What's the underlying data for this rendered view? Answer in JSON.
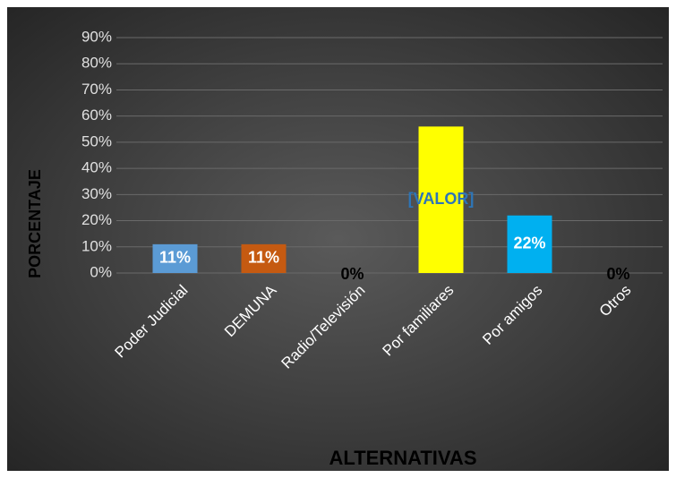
{
  "chart_data": {
    "type": "bar",
    "categories": [
      "Poder Judicial",
      "DEMUNA",
      "Radio/Televisión",
      "Por familiares",
      "Por amigos",
      "Otros"
    ],
    "values": [
      11,
      11,
      0,
      56,
      22,
      0
    ],
    "value_labels": [
      "11%",
      "11%",
      "0%",
      "[VALOR]",
      "22%",
      "0%"
    ],
    "colors": [
      "#5b9bd5",
      "#c55a11",
      "#a5a5a5",
      "#ffff00",
      "#00b0f0",
      "#4472c4"
    ],
    "value_label_colors": [
      "#ffffff",
      "#ffffff",
      "#000000",
      "#2e75b6",
      "#ffffff",
      "#000000"
    ],
    "ylim": [
      0,
      90
    ],
    "yticks": [
      {
        "value": 0,
        "label": "0%"
      },
      {
        "value": 10,
        "label": "10%"
      },
      {
        "value": 20,
        "label": "20%"
      },
      {
        "value": 30,
        "label": "30%"
      },
      {
        "value": 40,
        "label": "40%"
      },
      {
        "value": 50,
        "label": "50%"
      },
      {
        "value": 60,
        "label": "60%"
      },
      {
        "value": 70,
        "label": "70%"
      },
      {
        "value": 80,
        "label": "80%"
      },
      {
        "value": 90,
        "label": "90%"
      }
    ],
    "grid": true,
    "y_label": "PORCENTAJE",
    "x_label": "ALTERNATIVAS"
  }
}
